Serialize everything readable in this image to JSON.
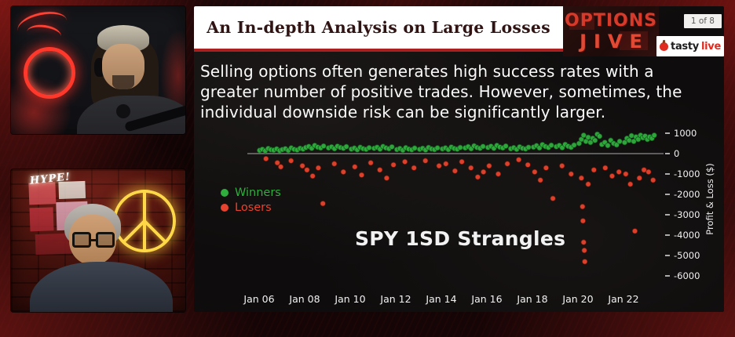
{
  "header": {
    "title": "An In-depth Analysis on Large Losses",
    "logo": {
      "line1": "OPTIONS",
      "line2": "JIVE"
    },
    "page_indicator": "1 of 8",
    "brand": {
      "name_black": "tasty",
      "name_red": "live",
      "icon": "tastylive-apple-icon"
    }
  },
  "slide": {
    "paragraph": "Selling options often generates high success rates with a greater number of positive trades. However, sometimes, the individual downside risk can be significantly larger.",
    "chart_title": "SPY 1SD Strangles",
    "legend": {
      "winners_label": "Winners",
      "losers_label": "Losers"
    }
  },
  "webcams": {
    "bottom_neon_sign": "HYPE!"
  },
  "colors": {
    "accent_red": "#a8201f",
    "winners_green": "#2fae3d",
    "losers_red": "#e8432e",
    "slide_bg": "#0e0c0c"
  },
  "chart_data": {
    "type": "scatter",
    "title": "SPY 1SD Strangles",
    "xlabel": "",
    "ylabel": "Profit & Loss ($)",
    "xlim": [
      2005.6,
      2023.9
    ],
    "ylim": [
      -6500,
      1200
    ],
    "grid": false,
    "legend_position": "left",
    "x_ticks": [
      {
        "value": 2006,
        "label": "Jan 06"
      },
      {
        "value": 2008,
        "label": "Jan 08"
      },
      {
        "value": 2010,
        "label": "Jan 10"
      },
      {
        "value": 2012,
        "label": "Jan 12"
      },
      {
        "value": 2014,
        "label": "Jan 14"
      },
      {
        "value": 2016,
        "label": "Jan 16"
      },
      {
        "value": 2018,
        "label": "Jan 18"
      },
      {
        "value": 2020,
        "label": "Jan 20"
      },
      {
        "value": 2022,
        "label": "Jan 22"
      }
    ],
    "y_ticks": [
      {
        "value": 1000,
        "label": "1000"
      },
      {
        "value": 0,
        "label": "0"
      },
      {
        "value": -1000,
        "label": "-1000"
      },
      {
        "value": -2000,
        "label": "-2000"
      },
      {
        "value": -3000,
        "label": "-3000"
      },
      {
        "value": -4000,
        "label": "-4000"
      },
      {
        "value": -5000,
        "label": "-5000"
      },
      {
        "value": -6000,
        "label": "-6000"
      }
    ],
    "series": [
      {
        "name": "Winners",
        "color": "#2fae3d",
        "edge_color": "#14501c",
        "points": [
          [
            2006.02,
            160
          ],
          [
            2006.14,
            210
          ],
          [
            2006.27,
            140
          ],
          [
            2006.4,
            250
          ],
          [
            2006.52,
            190
          ],
          [
            2006.64,
            170
          ],
          [
            2006.77,
            230
          ],
          [
            2006.9,
            150
          ],
          [
            2007.02,
            200
          ],
          [
            2007.15,
            240
          ],
          [
            2007.28,
            160
          ],
          [
            2007.41,
            280
          ],
          [
            2007.54,
            210
          ],
          [
            2007.67,
            180
          ],
          [
            2007.8,
            260
          ],
          [
            2007.93,
            220
          ],
          [
            2008.05,
            300
          ],
          [
            2008.18,
            350
          ],
          [
            2008.31,
            260
          ],
          [
            2008.44,
            400
          ],
          [
            2008.57,
            320
          ],
          [
            2008.7,
            280
          ],
          [
            2008.83,
            370
          ],
          [
            2009.05,
            280
          ],
          [
            2009.18,
            330
          ],
          [
            2009.31,
            240
          ],
          [
            2009.44,
            360
          ],
          [
            2009.57,
            300
          ],
          [
            2009.7,
            260
          ],
          [
            2009.83,
            340
          ],
          [
            2010.05,
            220
          ],
          [
            2010.18,
            270
          ],
          [
            2010.31,
            190
          ],
          [
            2010.44,
            310
          ],
          [
            2010.57,
            240
          ],
          [
            2010.7,
            210
          ],
          [
            2010.83,
            290
          ],
          [
            2011.05,
            260
          ],
          [
            2011.18,
            310
          ],
          [
            2011.31,
            220
          ],
          [
            2011.44,
            350
          ],
          [
            2011.57,
            280
          ],
          [
            2011.7,
            240
          ],
          [
            2011.83,
            330
          ],
          [
            2012.05,
            200
          ],
          [
            2012.18,
            250
          ],
          [
            2012.31,
            170
          ],
          [
            2012.44,
            290
          ],
          [
            2012.57,
            220
          ],
          [
            2012.7,
            190
          ],
          [
            2012.83,
            270
          ],
          [
            2013.05,
            210
          ],
          [
            2013.18,
            260
          ],
          [
            2013.31,
            180
          ],
          [
            2013.44,
            300
          ],
          [
            2013.57,
            230
          ],
          [
            2013.7,
            200
          ],
          [
            2013.83,
            280
          ],
          [
            2014.05,
            230
          ],
          [
            2014.18,
            280
          ],
          [
            2014.31,
            200
          ],
          [
            2014.44,
            320
          ],
          [
            2014.57,
            250
          ],
          [
            2014.7,
            220
          ],
          [
            2014.83,
            300
          ],
          [
            2015.05,
            280
          ],
          [
            2015.18,
            340
          ],
          [
            2015.31,
            240
          ],
          [
            2015.44,
            380
          ],
          [
            2015.57,
            300
          ],
          [
            2015.7,
            260
          ],
          [
            2015.83,
            350
          ],
          [
            2016.05,
            300
          ],
          [
            2016.18,
            360
          ],
          [
            2016.31,
            260
          ],
          [
            2016.44,
            400
          ],
          [
            2016.57,
            320
          ],
          [
            2016.7,
            280
          ],
          [
            2016.83,
            370
          ],
          [
            2017.05,
            240
          ],
          [
            2017.18,
            290
          ],
          [
            2017.31,
            210
          ],
          [
            2017.44,
            330
          ],
          [
            2017.57,
            260
          ],
          [
            2017.7,
            230
          ],
          [
            2017.83,
            310
          ],
          [
            2018.05,
            320
          ],
          [
            2018.18,
            390
          ],
          [
            2018.31,
            280
          ],
          [
            2018.44,
            440
          ],
          [
            2018.57,
            350
          ],
          [
            2018.7,
            300
          ],
          [
            2018.83,
            410
          ],
          [
            2019.05,
            340
          ],
          [
            2019.18,
            400
          ],
          [
            2019.31,
            290
          ],
          [
            2019.44,
            450
          ],
          [
            2019.57,
            360
          ],
          [
            2019.7,
            310
          ],
          [
            2019.83,
            420
          ],
          [
            2020.05,
            500
          ],
          [
            2020.15,
            700
          ],
          [
            2020.25,
            900
          ],
          [
            2020.35,
            600
          ],
          [
            2020.45,
            800
          ],
          [
            2020.55,
            550
          ],
          [
            2020.65,
            750
          ],
          [
            2020.75,
            650
          ],
          [
            2020.85,
            950
          ],
          [
            2020.95,
            850
          ],
          [
            2021.05,
            450
          ],
          [
            2021.18,
            550
          ],
          [
            2021.31,
            400
          ],
          [
            2021.44,
            650
          ],
          [
            2021.57,
            500
          ],
          [
            2021.7,
            430
          ],
          [
            2021.83,
            600
          ],
          [
            2022.05,
            550
          ],
          [
            2022.15,
            750
          ],
          [
            2022.25,
            650
          ],
          [
            2022.35,
            880
          ],
          [
            2022.45,
            600
          ],
          [
            2022.55,
            820
          ],
          [
            2022.65,
            700
          ],
          [
            2022.75,
            900
          ],
          [
            2022.85,
            780
          ],
          [
            2022.95,
            860
          ],
          [
            2023.05,
            700
          ],
          [
            2023.15,
            820
          ],
          [
            2023.25,
            750
          ],
          [
            2023.35,
            900
          ]
        ]
      },
      {
        "name": "Losers",
        "color": "#e8432e",
        "edge_color": "#6e1a08",
        "points": [
          [
            2006.3,
            -250
          ],
          [
            2006.8,
            -450
          ],
          [
            2006.95,
            -650
          ],
          [
            2007.4,
            -350
          ],
          [
            2007.9,
            -600
          ],
          [
            2008.1,
            -800
          ],
          [
            2008.35,
            -1100
          ],
          [
            2008.6,
            -700
          ],
          [
            2008.8,
            -2450
          ],
          [
            2009.3,
            -500
          ],
          [
            2009.7,
            -900
          ],
          [
            2010.2,
            -650
          ],
          [
            2010.5,
            -1050
          ],
          [
            2010.9,
            -450
          ],
          [
            2011.3,
            -800
          ],
          [
            2011.6,
            -1200
          ],
          [
            2011.9,
            -550
          ],
          [
            2012.4,
            -400
          ],
          [
            2012.8,
            -700
          ],
          [
            2013.3,
            -350
          ],
          [
            2013.9,
            -600
          ],
          [
            2014.2,
            -500
          ],
          [
            2014.6,
            -850
          ],
          [
            2014.9,
            -400
          ],
          [
            2015.3,
            -700
          ],
          [
            2015.6,
            -1150
          ],
          [
            2015.85,
            -900
          ],
          [
            2016.1,
            -600
          ],
          [
            2016.5,
            -1000
          ],
          [
            2016.9,
            -500
          ],
          [
            2017.4,
            -300
          ],
          [
            2017.8,
            -550
          ],
          [
            2018.1,
            -900
          ],
          [
            2018.35,
            -1300
          ],
          [
            2018.6,
            -700
          ],
          [
            2018.9,
            -2200
          ],
          [
            2019.3,
            -600
          ],
          [
            2019.7,
            -1000
          ],
          [
            2020.15,
            -1200
          ],
          [
            2020.2,
            -2600
          ],
          [
            2020.22,
            -3300
          ],
          [
            2020.25,
            -4350
          ],
          [
            2020.28,
            -4750
          ],
          [
            2020.3,
            -5300
          ],
          [
            2020.45,
            -1500
          ],
          [
            2020.7,
            -800
          ],
          [
            2021.2,
            -700
          ],
          [
            2021.5,
            -1100
          ],
          [
            2021.8,
            -900
          ],
          [
            2022.1,
            -1000
          ],
          [
            2022.3,
            -1500
          ],
          [
            2022.5,
            -3800
          ],
          [
            2022.7,
            -1200
          ],
          [
            2022.9,
            -800
          ],
          [
            2023.1,
            -900
          ],
          [
            2023.3,
            -1300
          ]
        ]
      }
    ]
  }
}
